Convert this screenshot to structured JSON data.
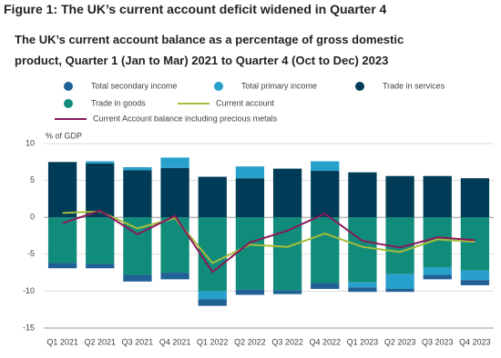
{
  "chart_data": {
    "type": "bar",
    "stacked": true,
    "title": "Figure 1: The UK’s current account deficit widened in Quarter 4",
    "subtitle": "The UK’s current account balance as a percentage of gross domestic product, Quarter 1 (Jan to Mar) 2021 to Quarter 4 (Oct to Dec) 2023",
    "ylabel": "% of GDP",
    "categories": [
      "Q1 2021",
      "Q2 2021",
      "Q3 2021",
      "Q4 2021",
      "Q1 2022",
      "Q2 2022",
      "Q3 2022",
      "Q4 2022",
      "Q1 2023",
      "Q2 2023",
      "Q3 2023",
      "Q4 2023"
    ],
    "ylim": [
      -15,
      10
    ],
    "yticks": [
      -15,
      -10,
      -5,
      0,
      5,
      10
    ],
    "grid": true,
    "series": [
      {
        "name": "Trade in services",
        "type": "bar",
        "color": "#003c57",
        "values": [
          7.5,
          7.3,
          6.4,
          6.7,
          5.5,
          5.3,
          6.6,
          6.3,
          6.1,
          5.6,
          5.6,
          5.3
        ]
      },
      {
        "name": "Trade in goods",
        "type": "bar",
        "color": "#118c7b",
        "values": [
          -6.2,
          -6.3,
          -7.8,
          -7.5,
          -10.0,
          -9.8,
          -9.9,
          -8.9,
          -8.8,
          -7.7,
          -6.8,
          -7.2
        ]
      },
      {
        "name": "Total primary income",
        "type": "bar",
        "color": "#27a0cc",
        "values": [
          0,
          0.3,
          0.4,
          1.4,
          -1.1,
          1.6,
          0,
          1.3,
          -0.7,
          -2.0,
          -1.0,
          -1.3
        ]
      },
      {
        "name": "Total secondary income",
        "type": "bar",
        "color": "#206095",
        "values": [
          -0.7,
          -0.6,
          -0.9,
          -0.9,
          -0.9,
          -0.7,
          -0.5,
          -0.8,
          -0.6,
          -0.4,
          -0.6,
          -0.7
        ]
      },
      {
        "name": "Current account",
        "type": "line",
        "color": "#a8bd3a",
        "values": [
          0.6,
          0.8,
          -1.5,
          -0.1,
          -6.2,
          -3.7,
          -4.0,
          -2.2,
          -4.0,
          -4.7,
          -3.0,
          -3.3
        ]
      },
      {
        "name": "Current Account balance including precious metals",
        "type": "line",
        "color": "#871a5b",
        "values": [
          -0.8,
          0.9,
          -2.3,
          0.2,
          -7.4,
          -3.4,
          -1.8,
          0.5,
          -3.2,
          -4.1,
          -2.7,
          -3.1
        ]
      }
    ]
  }
}
